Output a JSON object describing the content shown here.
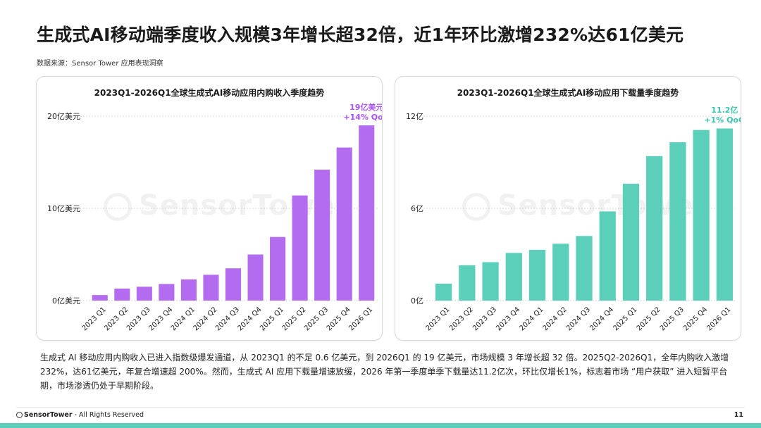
{
  "page": {
    "title": "生成式AI移动端季度收入规模3年增长超32倍，近1年环比激增232%达61亿美元",
    "source": "数据来源：Sensor Tower 应用表现洞察",
    "description": "生成式 AI 移动应用内购收入已进入指数级爆发通道，从 2023Q1 的不足 0.6 亿美元，到 2026Q1 的 19 亿美元，市场规模 3 年增长超 32 倍。2025Q2-2026Q1，全年内购收入激增232%，达61亿美元，年复合增速超 200%。然而，生成式 AI 应用下载量增速放缓，2026 年第一季度单季下载量达11.2亿次，环比仅增长1%，标志着市场 “用户获取” 进入短暂平台期，市场渗透仍处于早期阶段。",
    "watermark": "SensorTower",
    "footer_brand": "SensorTower",
    "footer_rights": " - All Rights Reserved",
    "page_number": "11"
  },
  "colors": {
    "revenue_bar": "#b36cf0",
    "downloads_bar": "#5ccfbb",
    "revenue_annotation": "#a855f7",
    "downloads_annotation": "#3cc4ad",
    "bottom_bar": "#5ccfbb"
  },
  "chart_data": [
    {
      "type": "bar",
      "title": "2023Q1-2026Q1全球生成式AI移动应用内购收入季度趋势",
      "categories": [
        "2023 Q1",
        "2023 Q2",
        "2023 Q3",
        "2023 Q4",
        "2024 Q1",
        "2024 Q2",
        "2024 Q3",
        "2024 Q4",
        "2025 Q1",
        "2025 Q2",
        "2025 Q3",
        "2025 Q4",
        "2026 Q1"
      ],
      "values": [
        0.6,
        1.3,
        1.5,
        1.8,
        2.3,
        2.8,
        3.5,
        5.0,
        6.9,
        11.4,
        14.2,
        16.6,
        19.0
      ],
      "ylim": [
        0,
        20
      ],
      "yticks": [
        0,
        10,
        20
      ],
      "ytick_labels": [
        "0亿美元",
        "10亿美元",
        "20亿美元"
      ],
      "grid": true,
      "annotation": {
        "line1": "19亿美元",
        "line2": "+14% QoQ"
      }
    },
    {
      "type": "bar",
      "title": "2023Q1-2026Q1全球生成式AI移动应用下载量季度趋势",
      "categories": [
        "2023 Q1",
        "2023 Q2",
        "2023 Q3",
        "2023 Q4",
        "2024 Q1",
        "2024 Q2",
        "2024 Q3",
        "2024 Q4",
        "2025 Q1",
        "2025 Q2",
        "2025 Q3",
        "2025 Q4",
        "2026 Q1"
      ],
      "values": [
        1.1,
        2.3,
        2.5,
        3.1,
        3.3,
        3.7,
        4.2,
        5.8,
        7.6,
        9.4,
        10.3,
        11.1,
        11.2
      ],
      "ylim": [
        0,
        12
      ],
      "yticks": [
        0,
        6,
        12
      ],
      "ytick_labels": [
        "0亿",
        "6亿",
        "12亿"
      ],
      "grid": true,
      "annotation": {
        "line1": "11.2亿",
        "line2": "+1% QoQ"
      }
    }
  ]
}
